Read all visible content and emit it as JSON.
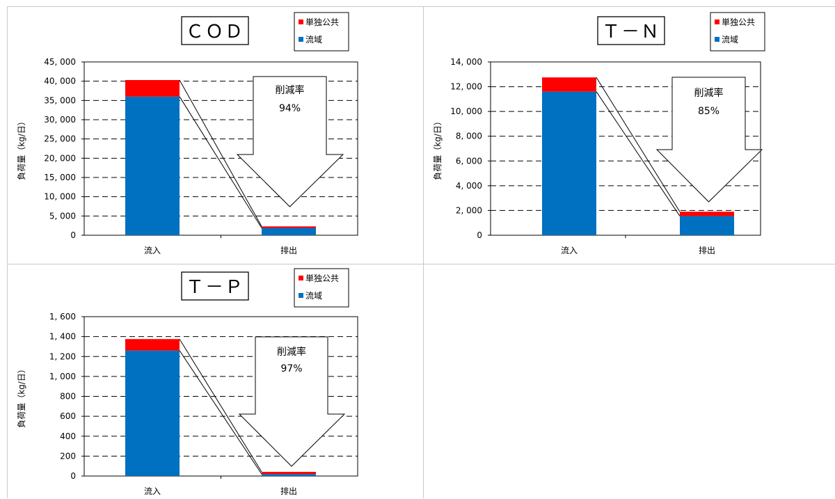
{
  "chart_data": [
    {
      "type": "bar",
      "stacked": true,
      "title": "ＣＯＤ",
      "ylabel": "負荷量（kg/日）",
      "categories": [
        "流入",
        "排出"
      ],
      "series": [
        {
          "name": "流域",
          "color": "#0070c0",
          "values": [
            36000,
            1900
          ]
        },
        {
          "name": "単独公共",
          "color": "#ff0000",
          "values": [
            4300,
            400
          ]
        }
      ],
      "ylim": [
        0,
        45000
      ],
      "ytick_step": 5000,
      "yticks": [
        "0",
        "5, 000",
        "10, 000",
        "15, 000",
        "20, 000",
        "25, 000",
        "30, 000",
        "35, 000",
        "40, 000",
        "45, 000"
      ],
      "grid": true,
      "legend": "top-right",
      "annotation": {
        "line1": "削減率",
        "line2": "94%"
      }
    },
    {
      "type": "bar",
      "stacked": true,
      "title": "Ｔ－Ｎ",
      "ylabel": "負荷量（kg/日）",
      "categories": [
        "流入",
        "排出"
      ],
      "series": [
        {
          "name": "流域",
          "color": "#0070c0",
          "values": [
            11600,
            1550
          ]
        },
        {
          "name": "単独公共",
          "color": "#ff0000",
          "values": [
            1150,
            350
          ]
        }
      ],
      "ylim": [
        0,
        14000
      ],
      "ytick_step": 2000,
      "yticks": [
        "0",
        "2, 000",
        "4, 000",
        "6, 000",
        "8, 000",
        "10, 000",
        "12, 000",
        "14, 000"
      ],
      "grid": true,
      "legend": "top-right",
      "annotation": {
        "line1": "削減率",
        "line2": "85%"
      }
    },
    {
      "type": "bar",
      "stacked": true,
      "title": "Ｔ－Ｐ",
      "ylabel": "負荷量（kg/日）",
      "categories": [
        "流入",
        "排出"
      ],
      "series": [
        {
          "name": "流域",
          "color": "#0070c0",
          "values": [
            1260,
            20
          ]
        },
        {
          "name": "単独公共",
          "color": "#ff0000",
          "values": [
            115,
            22
          ]
        }
      ],
      "ylim": [
        0,
        1600
      ],
      "ytick_step": 200,
      "yticks": [
        "0",
        "200",
        "400",
        "600",
        "800",
        "1, 000",
        "1, 200",
        "1, 400",
        "1, 600"
      ],
      "grid": true,
      "legend": "top-right",
      "annotation": {
        "line1": "削減率",
        "line2": "97%"
      }
    }
  ]
}
